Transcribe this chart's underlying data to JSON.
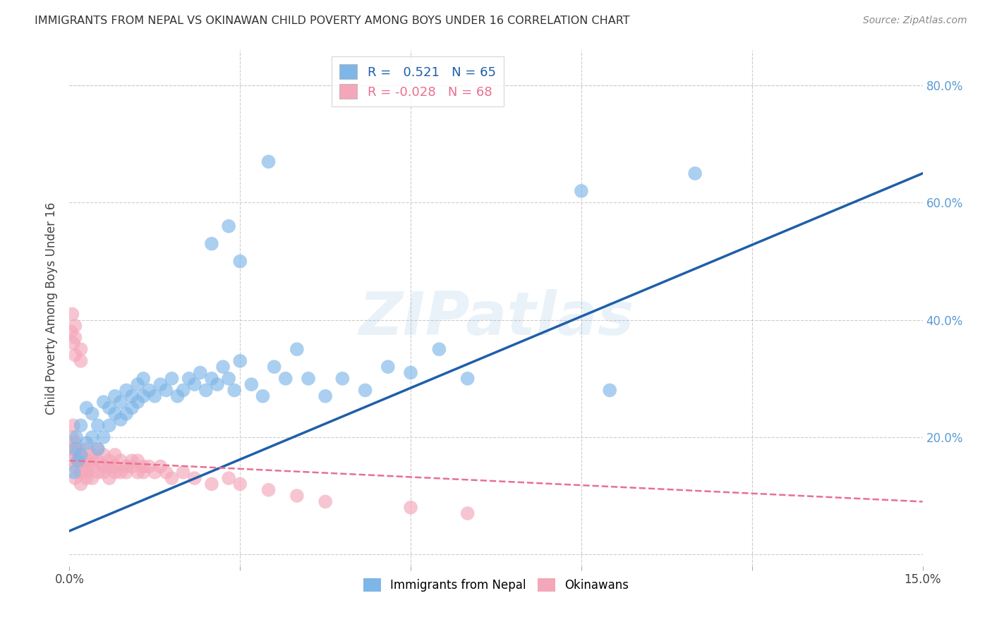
{
  "title": "IMMIGRANTS FROM NEPAL VS OKINAWAN CHILD POVERTY AMONG BOYS UNDER 16 CORRELATION CHART",
  "source": "Source: ZipAtlas.com",
  "ylabel": "Child Poverty Among Boys Under 16",
  "xlim": [
    0.0,
    0.15
  ],
  "ylim": [
    -0.02,
    0.86
  ],
  "y_ticks_right": [
    0.0,
    0.2,
    0.4,
    0.6,
    0.8
  ],
  "y_tick_labels_right": [
    "",
    "20.0%",
    "40.0%",
    "60.0%",
    "80.0%"
  ],
  "blue_R": 0.521,
  "blue_N": 65,
  "pink_R": -0.028,
  "pink_N": 68,
  "blue_color": "#7EB6E8",
  "pink_color": "#F4A7B9",
  "blue_line_color": "#1E5FA8",
  "pink_line_color": "#E87090",
  "watermark": "ZIPatlas",
  "blue_scatter_x": [
    0.0008,
    0.001,
    0.0012,
    0.0015,
    0.002,
    0.002,
    0.003,
    0.003,
    0.004,
    0.004,
    0.005,
    0.005,
    0.006,
    0.006,
    0.007,
    0.007,
    0.008,
    0.008,
    0.009,
    0.009,
    0.01,
    0.01,
    0.011,
    0.011,
    0.012,
    0.012,
    0.013,
    0.013,
    0.014,
    0.015,
    0.016,
    0.017,
    0.018,
    0.019,
    0.02,
    0.021,
    0.022,
    0.023,
    0.024,
    0.025,
    0.026,
    0.027,
    0.028,
    0.029,
    0.03,
    0.032,
    0.034,
    0.036,
    0.038,
    0.04,
    0.042,
    0.045,
    0.048,
    0.052,
    0.056,
    0.06,
    0.065,
    0.07,
    0.09,
    0.095,
    0.025,
    0.028,
    0.03,
    0.035,
    0.11
  ],
  "blue_scatter_y": [
    0.14,
    0.18,
    0.2,
    0.16,
    0.22,
    0.17,
    0.25,
    0.19,
    0.2,
    0.24,
    0.18,
    0.22,
    0.2,
    0.26,
    0.22,
    0.25,
    0.24,
    0.27,
    0.23,
    0.26,
    0.24,
    0.28,
    0.25,
    0.27,
    0.26,
    0.29,
    0.27,
    0.3,
    0.28,
    0.27,
    0.29,
    0.28,
    0.3,
    0.27,
    0.28,
    0.3,
    0.29,
    0.31,
    0.28,
    0.3,
    0.29,
    0.32,
    0.3,
    0.28,
    0.33,
    0.29,
    0.27,
    0.32,
    0.3,
    0.35,
    0.3,
    0.27,
    0.3,
    0.28,
    0.32,
    0.31,
    0.35,
    0.3,
    0.62,
    0.28,
    0.53,
    0.56,
    0.5,
    0.67,
    0.65
  ],
  "pink_scatter_x": [
    0.0003,
    0.0005,
    0.0005,
    0.0007,
    0.001,
    0.001,
    0.001,
    0.001,
    0.0015,
    0.0015,
    0.002,
    0.002,
    0.002,
    0.002,
    0.003,
    0.003,
    0.003,
    0.003,
    0.003,
    0.004,
    0.004,
    0.004,
    0.004,
    0.005,
    0.005,
    0.005,
    0.006,
    0.006,
    0.006,
    0.007,
    0.007,
    0.007,
    0.008,
    0.008,
    0.008,
    0.009,
    0.009,
    0.01,
    0.01,
    0.011,
    0.011,
    0.012,
    0.012,
    0.013,
    0.013,
    0.014,
    0.015,
    0.016,
    0.017,
    0.018,
    0.02,
    0.022,
    0.025,
    0.028,
    0.03,
    0.035,
    0.04,
    0.045,
    0.06,
    0.07,
    0.0003,
    0.0005,
    0.0007,
    0.001,
    0.001,
    0.001,
    0.002,
    0.002
  ],
  "pink_scatter_y": [
    0.18,
    0.16,
    0.2,
    0.22,
    0.15,
    0.17,
    0.19,
    0.13,
    0.16,
    0.18,
    0.14,
    0.17,
    0.16,
    0.12,
    0.15,
    0.18,
    0.16,
    0.14,
    0.13,
    0.16,
    0.15,
    0.17,
    0.13,
    0.16,
    0.14,
    0.18,
    0.15,
    0.17,
    0.14,
    0.16,
    0.15,
    0.13,
    0.17,
    0.15,
    0.14,
    0.16,
    0.14,
    0.15,
    0.14,
    0.16,
    0.15,
    0.14,
    0.16,
    0.15,
    0.14,
    0.15,
    0.14,
    0.15,
    0.14,
    0.13,
    0.14,
    0.13,
    0.12,
    0.13,
    0.12,
    0.11,
    0.1,
    0.09,
    0.08,
    0.07,
    0.38,
    0.41,
    0.36,
    0.39,
    0.34,
    0.37,
    0.33,
    0.35
  ],
  "blue_line_x": [
    0.0,
    0.15
  ],
  "blue_line_y": [
    0.04,
    0.65
  ],
  "pink_line_x": [
    0.0,
    0.15
  ],
  "pink_line_y": [
    0.16,
    0.09
  ]
}
